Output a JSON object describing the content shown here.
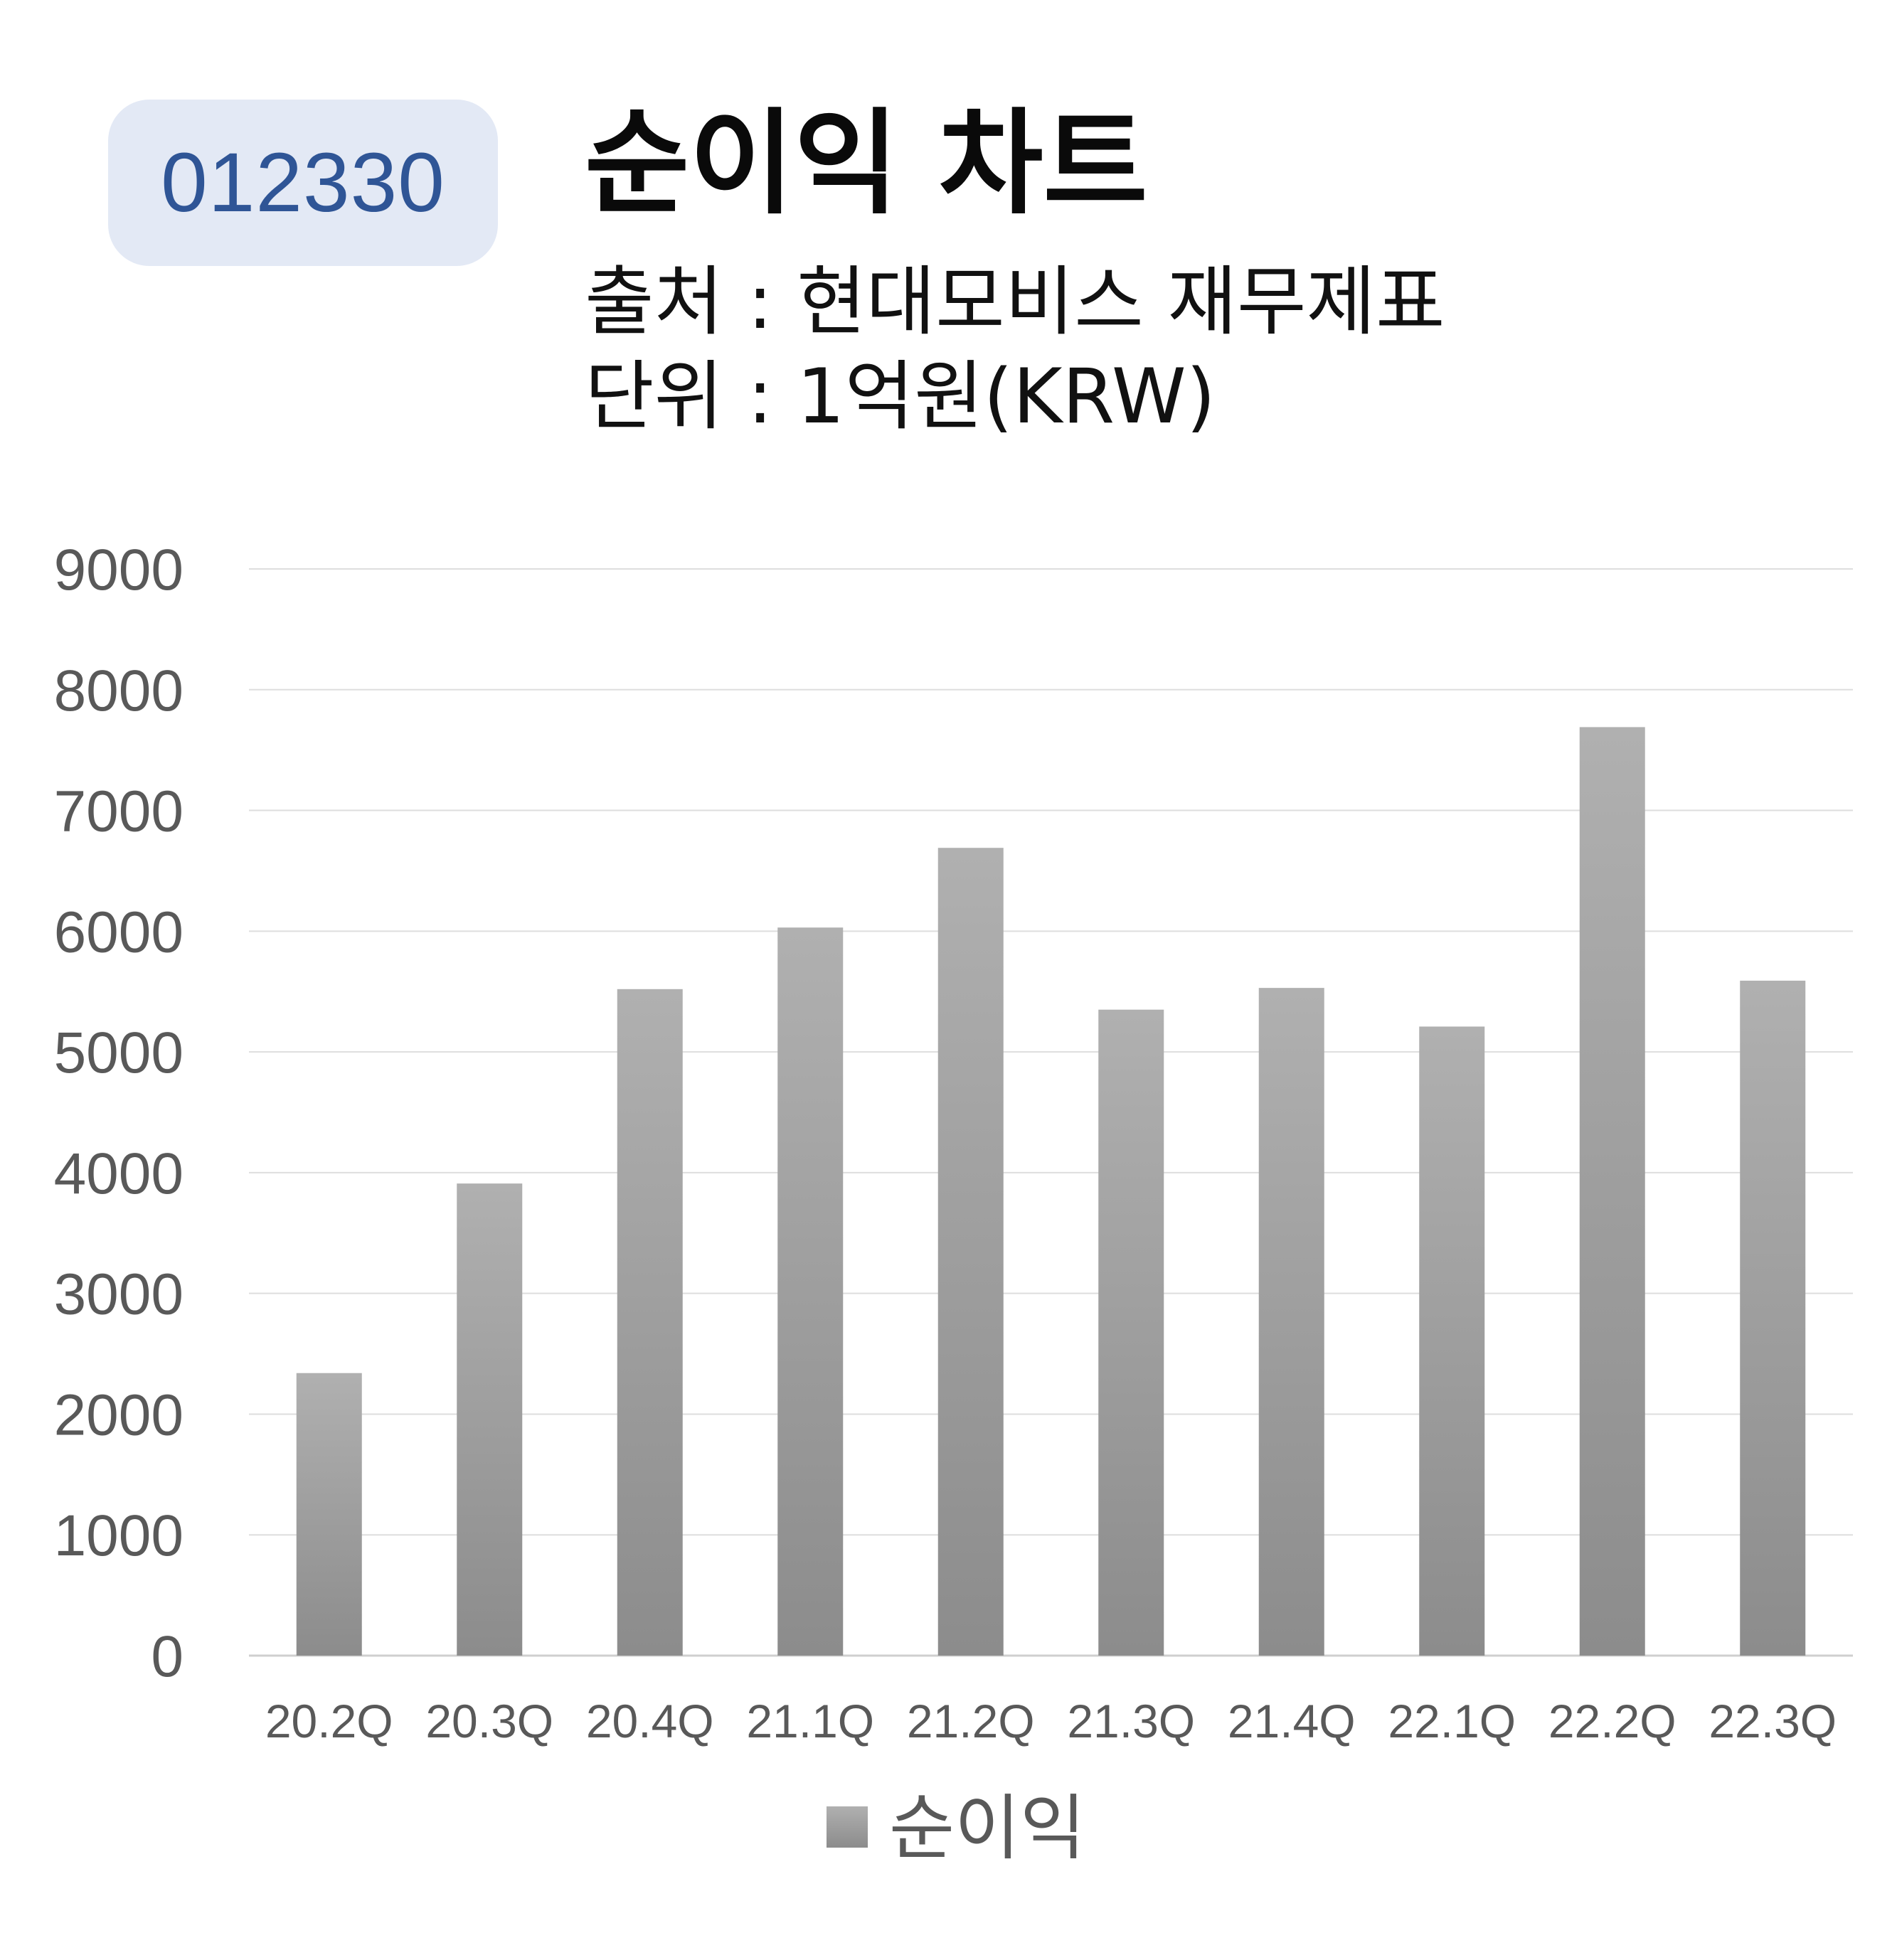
{
  "badge": {
    "code": "012330"
  },
  "header": {
    "title": "순이익 차트",
    "source": "출처 : 현대모비스 재무제표",
    "unit": "단위 : 1억원(KRW)"
  },
  "colors": {
    "badge_bg": "#e3e9f5",
    "badge_text": "#2f5596",
    "bar_top": "#b0b0b0",
    "bar_bottom": "#8c8c8c",
    "grid": "#d9d9d9",
    "tick_text": "#595959"
  },
  "chart_data": {
    "type": "bar",
    "categories": [
      "20.2Q",
      "20.3Q",
      "20.4Q",
      "21.1Q",
      "21.2Q",
      "21.3Q",
      "21.4Q",
      "22.1Q",
      "22.2Q",
      "22.3Q"
    ],
    "series": [
      {
        "name": "순이익",
        "values": [
          2340,
          3910,
          5520,
          6030,
          6690,
          5350,
          5530,
          5210,
          7690,
          5590
        ]
      }
    ],
    "ylim": [
      0,
      9000
    ],
    "yticks": [
      0,
      1000,
      2000,
      3000,
      4000,
      5000,
      6000,
      7000,
      8000,
      9000
    ],
    "grid": true,
    "legend": "bottom"
  }
}
